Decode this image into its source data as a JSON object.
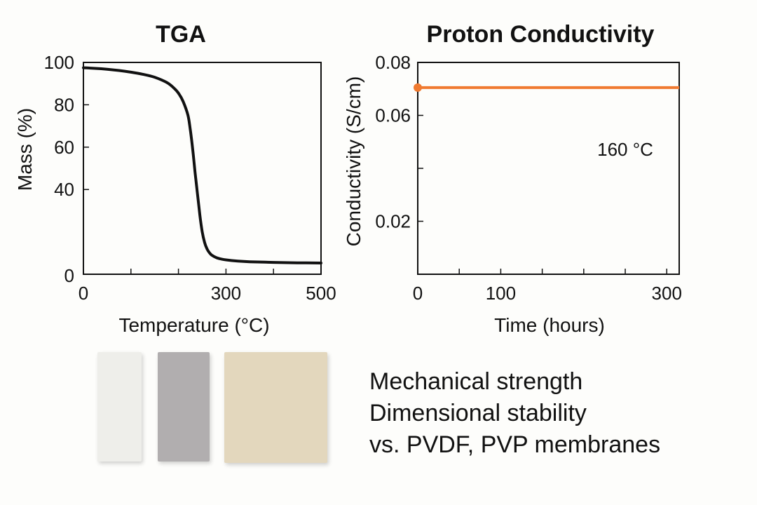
{
  "chart_data": [
    {
      "type": "line",
      "title": "TGA",
      "xlabel": "Temperature (°C)",
      "ylabel": "Mass (%)",
      "xlim": [
        0,
        500
      ],
      "ylim": [
        0,
        100
      ],
      "x_ticks": [
        0,
        300,
        500
      ],
      "x_minor_ticks": [
        0,
        100,
        200,
        300,
        400,
        500
      ],
      "y_ticks": [
        40,
        60,
        80,
        100
      ],
      "y_tick_zero_label": "0",
      "grid": false,
      "series": [
        {
          "color": "#111111",
          "x": [
            0,
            25,
            50,
            75,
            100,
            125,
            150,
            175,
            190,
            200,
            210,
            220,
            225,
            230,
            235,
            240,
            245,
            250,
            255,
            260,
            265,
            270,
            280,
            290,
            300,
            325,
            350,
            400,
            450,
            500
          ],
          "y": [
            97.5,
            97.2,
            96.8,
            96.2,
            95.4,
            94.4,
            93,
            90.6,
            88,
            85.5,
            81.5,
            75,
            68,
            59,
            48,
            38,
            28,
            20,
            15,
            12,
            10.2,
            9,
            7.8,
            7.2,
            6.8,
            6.2,
            5.9,
            5.6,
            5.4,
            5.3
          ]
        }
      ]
    },
    {
      "type": "line",
      "title": "Proton Conductivity",
      "xlabel": "Time (hours)",
      "ylabel": "Conductivity (S/cm)",
      "xlim": [
        0,
        315
      ],
      "ylim": [
        0,
        0.08
      ],
      "x_ticks": [
        0,
        100,
        300
      ],
      "x_minor_ticks": [
        0,
        50,
        100,
        150,
        200,
        250,
        300
      ],
      "y_ticks": [
        "0.02",
        "0.06",
        "0.08"
      ],
      "y_minor_ticks": [
        0.02,
        0.04,
        0.06,
        0.08
      ],
      "grid": false,
      "annotation": "160 °C",
      "series": [
        {
          "color": "#f07a30",
          "x": [
            0,
            315
          ],
          "y": [
            0.0705,
            0.0705
          ]
        }
      ]
    }
  ],
  "samples": [
    {
      "color": "#eeeeea"
    },
    {
      "color": "#b1aeaf"
    },
    {
      "color": "#e3d7bd"
    }
  ],
  "properties": [
    "Mechanical strength",
    "Dimensional stability",
    "vs. PVDF, PVP membranes"
  ]
}
